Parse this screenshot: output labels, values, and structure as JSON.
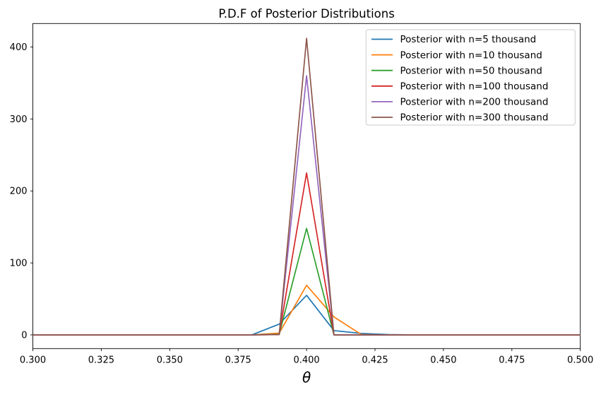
{
  "chart_data": {
    "type": "line",
    "title": "P.D.F of Posterior Distributions",
    "xlabel": "θ",
    "ylabel": "",
    "grid": false,
    "legend_position": "upper right",
    "xlim": [
      0.3,
      0.5
    ],
    "ylim": [
      -19,
      432.6
    ],
    "x_ticks": [
      0.3,
      0.325,
      0.35,
      0.375,
      0.4,
      0.425,
      0.45,
      0.475,
      0.5
    ],
    "x_tick_labels": [
      "0.300",
      "0.325",
      "0.350",
      "0.375",
      "0.400",
      "0.425",
      "0.450",
      "0.475",
      "0.500"
    ],
    "y_ticks": [
      0,
      100,
      200,
      300,
      400
    ],
    "y_tick_labels": [
      "0",
      "100",
      "200",
      "300",
      "400"
    ],
    "x": [
      0.3,
      0.31,
      0.32,
      0.33,
      0.34,
      0.35,
      0.36,
      0.37,
      0.38,
      0.39,
      0.4,
      0.41,
      0.42,
      0.43,
      0.44,
      0.45,
      0.46,
      0.47,
      0.48,
      0.49,
      0.5
    ],
    "series": [
      {
        "name": "Posterior with n=5 thousand",
        "color": "#1f77b4",
        "values": [
          0,
          0,
          0,
          0,
          0,
          0,
          0,
          0,
          0,
          15,
          55,
          6,
          2,
          0.5,
          0,
          0,
          0,
          0,
          0,
          0,
          0
        ]
      },
      {
        "name": "Posterior with n=10 thousand",
        "color": "#ff7f0e",
        "values": [
          0,
          0,
          0,
          0,
          0,
          0,
          0,
          0,
          0,
          2.5,
          69,
          25,
          0.5,
          0,
          0,
          0,
          0,
          0,
          0,
          0,
          0
        ]
      },
      {
        "name": "Posterior with n=50 thousand",
        "color": "#2ca02c",
        "values": [
          0,
          0,
          0,
          0,
          0,
          0,
          0,
          0,
          0,
          1,
          148,
          0,
          0,
          0,
          0,
          0,
          0,
          0,
          0,
          0,
          0
        ]
      },
      {
        "name": "Posterior with n=100 thousand",
        "color": "#d62728",
        "values": [
          0,
          0,
          0,
          0,
          0,
          0,
          0,
          0,
          0,
          0.5,
          225,
          0,
          0,
          0,
          0,
          0,
          0,
          0,
          0,
          0,
          0
        ]
      },
      {
        "name": "Posterior with n=200 thousand",
        "color": "#9467bd",
        "values": [
          0,
          0,
          0,
          0,
          0,
          0,
          0,
          0,
          0,
          0.5,
          360,
          0,
          0,
          0,
          0,
          0,
          0,
          0,
          0,
          0,
          0
        ]
      },
      {
        "name": "Posterior with n=300 thousand",
        "color": "#8c564b",
        "values": [
          0,
          0,
          0,
          0,
          0,
          0,
          0,
          0,
          0,
          0.5,
          412,
          0,
          0,
          0,
          0,
          0,
          0,
          0,
          0,
          0,
          0
        ]
      }
    ],
    "legend_labels": [
      "Posterior with n=5 thousand",
      "Posterior with n=10 thousand",
      "Posterior with n=50 thousand",
      "Posterior with n=100 thousand",
      "Posterior with n=200 thousand",
      "Posterior with n=300 thousand"
    ],
    "colors": {
      "spine": "#000000",
      "legend_border": "#cccccc",
      "background": "#ffffff"
    }
  }
}
